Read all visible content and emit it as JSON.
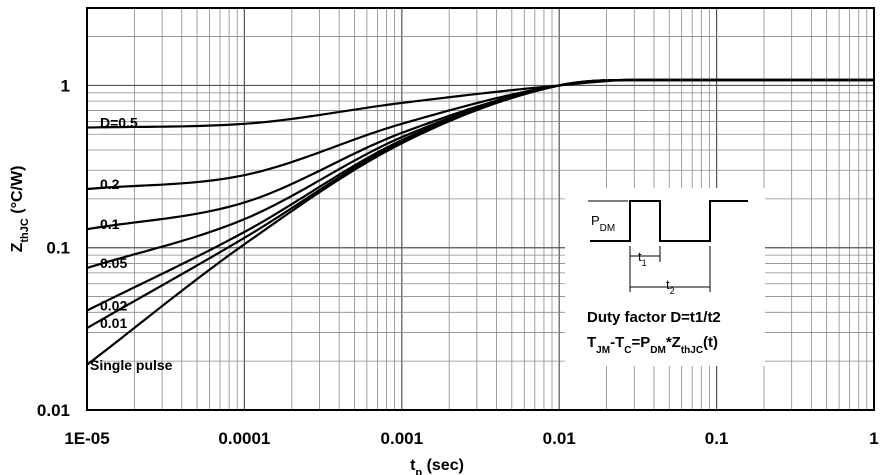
{
  "chart_data": {
    "type": "line",
    "title": "",
    "xlabel": "t",
    "xlabel_sub": "p",
    "xlabel_unit": " (sec)",
    "ylabel": "Z",
    "ylabel_sub": "thJC",
    "ylabel_unit": " (°C/W)",
    "x_scale": "log",
    "y_scale": "log",
    "xlim": [
      1e-05,
      1
    ],
    "ylim": [
      0.01,
      3
    ],
    "grid": true,
    "x_ticks": [
      {
        "value": 1e-05,
        "label": "1E-05"
      },
      {
        "value": 0.0001,
        "label": "0.0001"
      },
      {
        "value": 0.001,
        "label": "0.001"
      },
      {
        "value": 0.01,
        "label": "0.01"
      },
      {
        "value": 0.1,
        "label": "0.1"
      },
      {
        "value": 1,
        "label": "1"
      }
    ],
    "y_ticks": [
      {
        "value": 0.01,
        "label": "0.01"
      },
      {
        "value": 0.1,
        "label": "0.1"
      },
      {
        "value": 1,
        "label": "1"
      }
    ],
    "series": [
      {
        "name": "D=0.5",
        "x": [
          1e-05,
          0.0001,
          0.001,
          0.01,
          0.03,
          1
        ],
        "y": [
          0.55,
          0.58,
          0.78,
          1.0,
          1.08,
          1.08
        ]
      },
      {
        "name": "0.2",
        "x": [
          1e-05,
          0.0001,
          0.001,
          0.01,
          0.03,
          1
        ],
        "y": [
          0.23,
          0.28,
          0.58,
          1.0,
          1.08,
          1.08
        ]
      },
      {
        "name": "0.1",
        "x": [
          1e-05,
          0.0001,
          0.001,
          0.01,
          0.03,
          1
        ],
        "y": [
          0.13,
          0.19,
          0.51,
          1.0,
          1.08,
          1.08
        ]
      },
      {
        "name": "0.05",
        "x": [
          1e-05,
          0.0001,
          0.001,
          0.01,
          0.03,
          1
        ],
        "y": [
          0.075,
          0.15,
          0.48,
          1.0,
          1.08,
          1.08
        ]
      },
      {
        "name": "0.02",
        "x": [
          1e-05,
          0.0001,
          0.001,
          0.01,
          0.03,
          1
        ],
        "y": [
          0.041,
          0.125,
          0.46,
          1.0,
          1.08,
          1.08
        ]
      },
      {
        "name": "0.01",
        "x": [
          1e-05,
          0.0001,
          0.001,
          0.01,
          0.03,
          1
        ],
        "y": [
          0.032,
          0.115,
          0.45,
          1.0,
          1.08,
          1.08
        ]
      },
      {
        "name": "Single pulse",
        "x": [
          1e-05,
          0.0001,
          0.001,
          0.01,
          0.03,
          1
        ],
        "y": [
          0.019,
          0.105,
          0.44,
          1.0,
          1.08,
          1.08
        ]
      }
    ],
    "annotations": {
      "pdm": "P",
      "pdm_sub": "DM",
      "t1": "t",
      "t1_sub": "1",
      "t2": "t",
      "t2_sub": "2",
      "duty_line": "Duty factor D=t1/t2",
      "eq_T": "T",
      "eq_JM": "JM",
      "eq_minus_T": "-T",
      "eq_C": "C",
      "eq_eq_P": "=P",
      "eq_DM": "DM",
      "eq_star_Z": "*Z",
      "eq_thJC": "thJC",
      "eq_t": "(t)"
    }
  }
}
